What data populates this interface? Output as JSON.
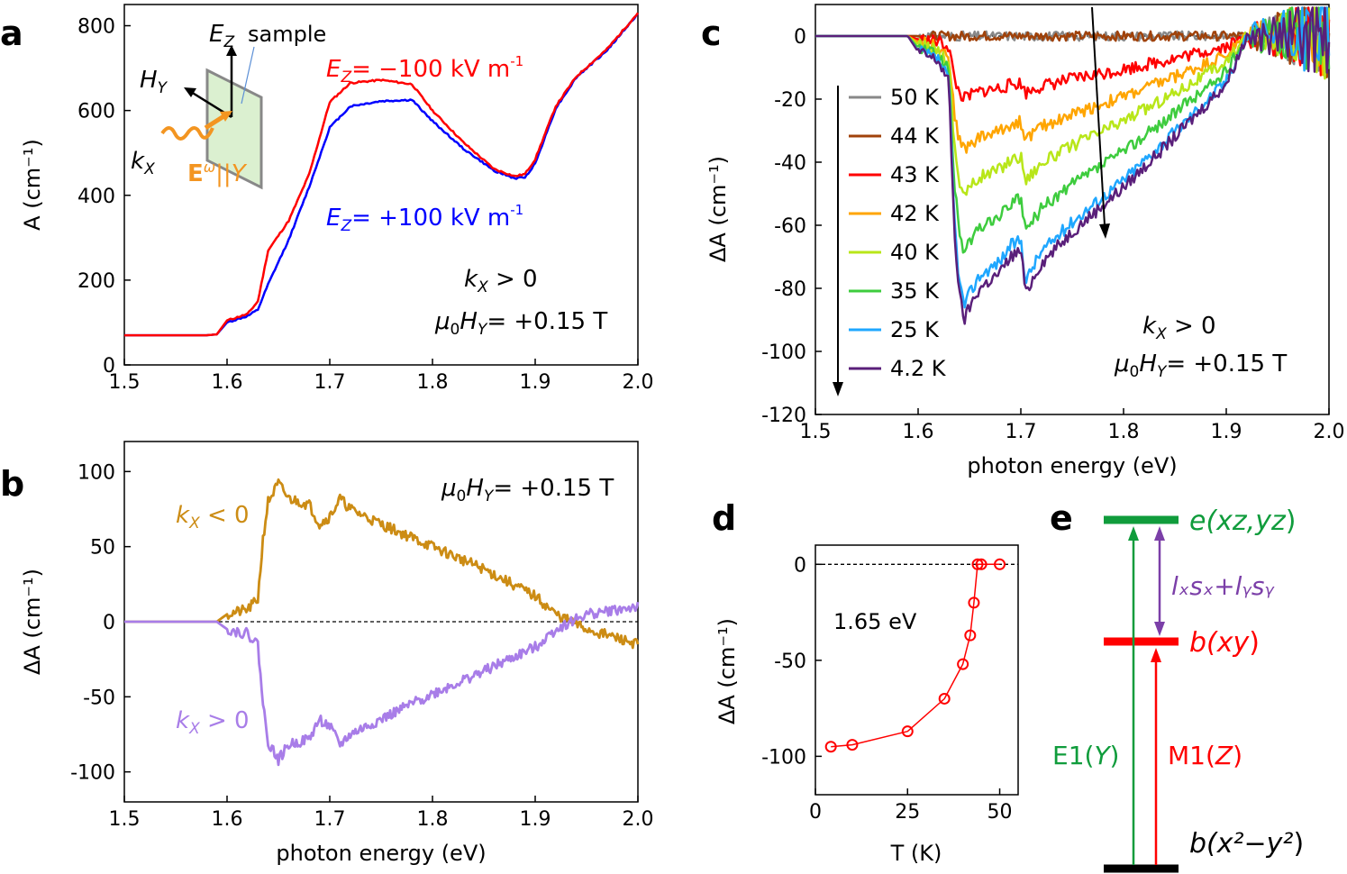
{
  "panels": {
    "a": {
      "label": "a"
    },
    "b": {
      "label": "b"
    },
    "c": {
      "label": "c"
    },
    "d": {
      "label": "d"
    },
    "e": {
      "label": "e"
    }
  },
  "chart_data": [
    {
      "id": "a",
      "type": "line",
      "xlabel": "",
      "ylabel": "A (cm⁻¹)",
      "xlim": [
        1.5,
        2.0
      ],
      "ylim": [
        0,
        850
      ],
      "xticks": [
        1.5,
        1.6,
        1.7,
        1.8,
        1.9,
        2.0
      ],
      "yticks": [
        0,
        200,
        400,
        600,
        800
      ],
      "series": [
        {
          "name": "E_Z = −100 kV m⁻¹",
          "color": "#ff0000",
          "x": [
            1.5,
            1.58,
            1.59,
            1.6,
            1.62,
            1.63,
            1.64,
            1.66,
            1.68,
            1.7,
            1.72,
            1.75,
            1.78,
            1.8,
            1.83,
            1.86,
            1.88,
            1.89,
            1.9,
            1.92,
            1.94,
            1.97,
            2.0
          ],
          "y": [
            70,
            70,
            72,
            105,
            120,
            150,
            270,
            340,
            450,
            620,
            665,
            672,
            662,
            600,
            525,
            462,
            445,
            450,
            485,
            610,
            680,
            745,
            830
          ]
        },
        {
          "name": "E_Z = +100 kV m⁻¹",
          "color": "#0000ff",
          "x": [
            1.5,
            1.58,
            1.59,
            1.6,
            1.62,
            1.63,
            1.64,
            1.66,
            1.68,
            1.7,
            1.72,
            1.75,
            1.78,
            1.8,
            1.83,
            1.86,
            1.88,
            1.89,
            1.9,
            1.92,
            1.94,
            1.97,
            2.0
          ],
          "y": [
            70,
            70,
            72,
            100,
            115,
            130,
            190,
            295,
            420,
            560,
            610,
            622,
            625,
            575,
            510,
            458,
            440,
            442,
            475,
            605,
            678,
            742,
            828
          ]
        }
      ],
      "annotations": {
        "ez_label": "E",
        "ez_sub": "Z",
        "sample": "sample",
        "hy_label": "H",
        "hy_sub": "Y",
        "kx_label": "k",
        "kx_sub": "X",
        "e_omega": "E",
        "e_omega_sup": "ω",
        "e_omega_tail": "||Y",
        "red_label": "= −100 kV m",
        "blue_label": "= +100 kV m",
        "unit_sup": "-1",
        "kx_cond": " > 0",
        "field": "= +0.15 T",
        "mu0": "μ",
        "mu0_sub": "0"
      }
    },
    {
      "id": "b",
      "type": "line",
      "xlabel": "photon energy (eV)",
      "ylabel": "ΔA (cm⁻¹)",
      "xlim": [
        1.5,
        2.0
      ],
      "ylim": [
        -120,
        120
      ],
      "xticks": [
        1.5,
        1.6,
        1.7,
        1.8,
        1.9,
        2.0
      ],
      "yticks": [
        -100,
        -50,
        0,
        50,
        100
      ],
      "series": [
        {
          "name": "k_X < 0",
          "color": "#cc8c14",
          "x": [
            1.5,
            1.59,
            1.6,
            1.62,
            1.63,
            1.635,
            1.64,
            1.65,
            1.66,
            1.68,
            1.69,
            1.7,
            1.71,
            1.72,
            1.75,
            1.8,
            1.85,
            1.9,
            1.92,
            1.95,
            2.0
          ],
          "y": [
            0,
            0,
            5,
            8,
            15,
            55,
            80,
            92,
            82,
            78,
            65,
            70,
            82,
            75,
            65,
            50,
            35,
            17,
            5,
            -5,
            -15
          ]
        },
        {
          "name": "k_X > 0",
          "color": "#a87de8",
          "x": [
            1.5,
            1.59,
            1.6,
            1.62,
            1.63,
            1.635,
            1.64,
            1.65,
            1.66,
            1.68,
            1.69,
            1.7,
            1.71,
            1.72,
            1.75,
            1.8,
            1.85,
            1.9,
            1.92,
            1.95,
            2.0
          ],
          "y": [
            0,
            0,
            -5,
            -8,
            -15,
            -55,
            -80,
            -92,
            -82,
            -78,
            -65,
            -70,
            -82,
            -75,
            -65,
            -48,
            -33,
            -17,
            -5,
            5,
            10
          ]
        }
      ],
      "annotations": {
        "kx_neg": " < 0",
        "kx_pos": " > 0",
        "field": "= +0.15 T"
      }
    },
    {
      "id": "c",
      "type": "line",
      "xlabel": "photon energy (eV)",
      "ylabel": "ΔA (cm⁻¹)",
      "xlim": [
        1.5,
        2.0
      ],
      "ylim": [
        -120,
        10
      ],
      "xticks": [
        1.5,
        1.6,
        1.7,
        1.8,
        1.9,
        2.0
      ],
      "yticks": [
        -120,
        -100,
        -80,
        -60,
        -40,
        -20,
        0
      ],
      "legend": [
        "50 K",
        "44 K",
        "43 K",
        "42 K",
        "40 K",
        "35 K",
        "25 K",
        "4.2 K"
      ],
      "series": [
        {
          "name": "50 K",
          "color": "#888888",
          "scale": 0
        },
        {
          "name": "44 K",
          "color": "#a0420a",
          "scale": 0
        },
        {
          "name": "43 K",
          "color": "#ff0000",
          "scale": 0.22
        },
        {
          "name": "42 K",
          "color": "#ffa500",
          "scale": 0.4
        },
        {
          "name": "40 K",
          "color": "#b8e619",
          "scale": 0.56
        },
        {
          "name": "35 K",
          "color": "#3ecc3e",
          "scale": 0.76
        },
        {
          "name": "25 K",
          "color": "#1fa7ff",
          "scale": 0.95
        },
        {
          "name": "4.2 K",
          "color": "#5a1f7a",
          "scale": 1.0
        }
      ],
      "base_shape": {
        "x": [
          1.5,
          1.59,
          1.6,
          1.62,
          1.63,
          1.635,
          1.64,
          1.645,
          1.65,
          1.66,
          1.68,
          1.69,
          1.7,
          1.705,
          1.71,
          1.72,
          1.75,
          1.8,
          1.85,
          1.9,
          1.92
        ],
        "y": [
          0,
          0,
          -5,
          -8,
          -15,
          -60,
          -82,
          -90,
          -86,
          -80,
          -75,
          -70,
          -68,
          -82,
          -78,
          -72,
          -62,
          -48,
          -32,
          -15,
          0
        ]
      },
      "annotations": {
        "kx_cond": " > 0",
        "field": "= +0.15 T"
      }
    },
    {
      "id": "d",
      "type": "scatter",
      "xlabel": "T (K)",
      "ylabel": "ΔA (cm⁻¹)",
      "xlim": [
        0,
        55
      ],
      "ylim": [
        -120,
        10
      ],
      "xticks": [
        0,
        25,
        50
      ],
      "yticks": [
        -100,
        -50,
        0
      ],
      "series": [
        {
          "name": "1.65 eV",
          "color": "#ff0000",
          "x": [
            4.2,
            10,
            25,
            35,
            40,
            42,
            43,
            44,
            45,
            50
          ],
          "y": [
            -95,
            -94,
            -87,
            -70,
            -52,
            -37,
            -20,
            0,
            0,
            0
          ]
        }
      ],
      "annotations": {
        "energy": "1.65 eV"
      }
    }
  ],
  "diagram_e": {
    "levels": [
      {
        "name": "e(xz,yz)",
        "pre": "e(",
        "mid": "xz,yz",
        "post": ")",
        "color": "#109c3c"
      },
      {
        "name": "b(xy)",
        "pre": "b(",
        "mid": "xy",
        "post": ")",
        "color": "#ff0000"
      },
      {
        "name": "b(x²−y²)",
        "pre": "b(",
        "mid": "x²−y²",
        "post": ")",
        "color": "#000000"
      }
    ],
    "transitions": {
      "e1": {
        "pre": "E1(",
        "mid": "Y",
        "post": ")",
        "color": "#109c3c"
      },
      "m1": {
        "pre": "M1(",
        "mid": "Z",
        "post": ")",
        "color": "#ff0000"
      },
      "soc": {
        "text": "lₓsₓ+lᵧsᵧ",
        "color": "#7b3fa8"
      }
    }
  }
}
